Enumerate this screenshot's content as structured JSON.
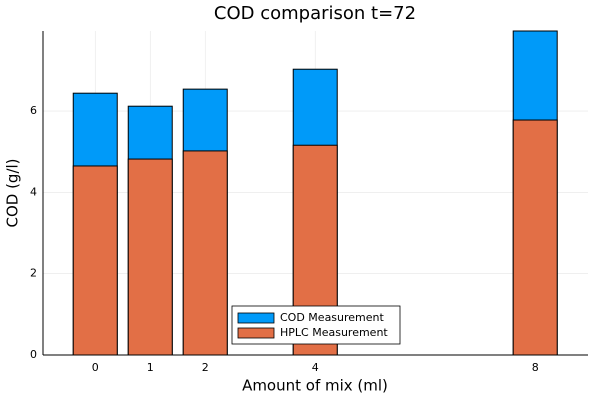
{
  "chart_data": {
    "type": "bar",
    "title": "COD comparison t=72",
    "x_label": "Amount of mix (ml)",
    "y_label": "COD (g/l)",
    "x": [
      0,
      1,
      2,
      4,
      8
    ],
    "series": [
      {
        "name": "COD Measurement",
        "color": "#009af9",
        "values": [
          6.44,
          6.12,
          6.54,
          7.03,
          7.97
        ]
      },
      {
        "name": "HPLC Measurement",
        "color": "#e26f46",
        "values": [
          4.65,
          4.82,
          5.02,
          5.16,
          5.78
        ]
      }
    ],
    "xlim": [
      -0.95,
      8.96
    ],
    "ylim": [
      0,
      7.97
    ],
    "xticks": [
      0,
      1,
      2,
      4,
      8
    ],
    "yticks": [
      0,
      2,
      4,
      6
    ],
    "grid": true,
    "legend": "bottom"
  }
}
